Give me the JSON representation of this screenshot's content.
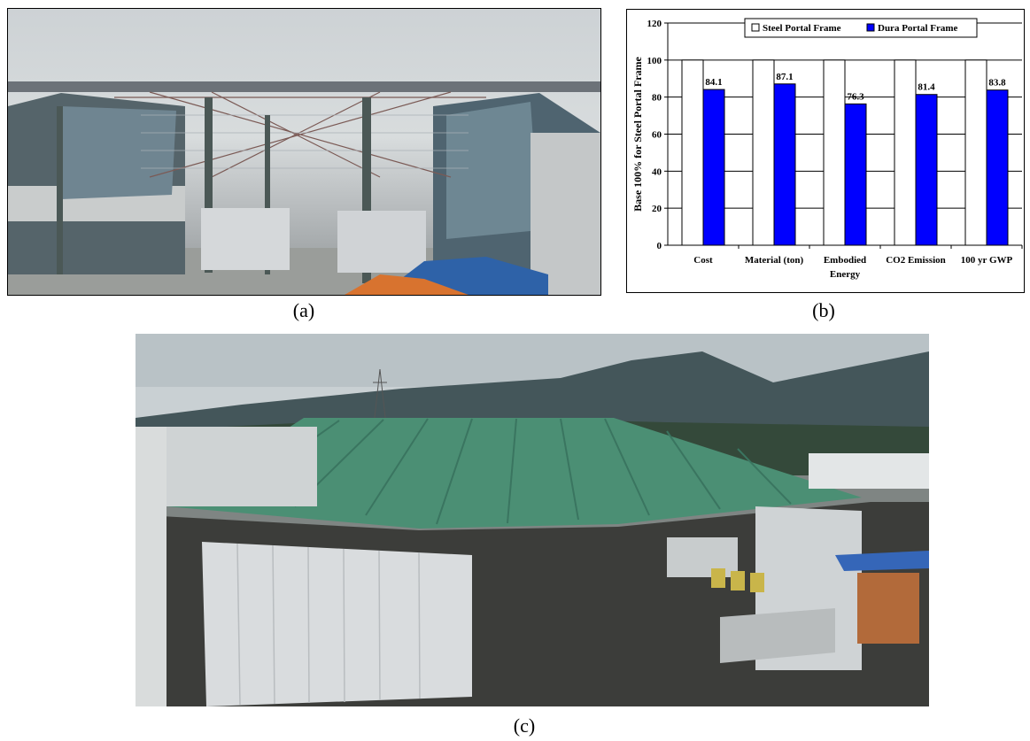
{
  "captions": {
    "a": "(a)",
    "b": "(b)",
    "c": "(c)"
  },
  "photos": {
    "a": {
      "subject": "steel portal frame building interior under construction"
    },
    "c": {
      "subject": "panorama of green-roofed portal frame shed with hills behind"
    }
  },
  "chart_data": {
    "type": "bar",
    "title": "",
    "xlabel": "",
    "ylabel": "Base 100% for Steel Portal Frame",
    "ylim": [
      0,
      120
    ],
    "yticks": [
      "0",
      "20",
      "40",
      "60",
      "80",
      "100",
      "120"
    ],
    "grid": true,
    "legend_position": "top",
    "categories": [
      [
        "Cost"
      ],
      [
        "Material (ton)"
      ],
      [
        "Embodied",
        "Energy"
      ],
      [
        "CO2 Emission"
      ],
      [
        "100 yr GWP"
      ]
    ],
    "series": [
      {
        "name": "Steel Portal Frame",
        "color": "#ffffff",
        "values": [
          100,
          100,
          100,
          100,
          100
        ]
      },
      {
        "name": "Dura Portal Frame",
        "color": "#0000ff",
        "values": [
          84.1,
          87.1,
          76.3,
          81.4,
          83.8
        ]
      }
    ],
    "data_labels": [
      "84.1",
      "87.1",
      "76.3",
      "81.4",
      "83.8"
    ]
  }
}
